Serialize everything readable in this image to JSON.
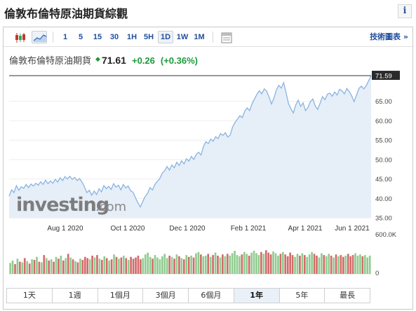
{
  "page": {
    "title": "倫敦布倫特原油期貨綜觀",
    "info_icon": "info-icon"
  },
  "toolbar": {
    "chart_type_icons": [
      "candlestick-icon",
      "area-chart-icon"
    ],
    "intervals": [
      "1",
      "5",
      "15",
      "30",
      "1H",
      "5H",
      "1D",
      "1W",
      "1M"
    ],
    "active_interval": "1D",
    "settings_icon": "table-icon",
    "tech_link": "技術圖表 »"
  },
  "quote": {
    "name": "倫敦布倫特原油期貨",
    "direction_icon": "up-arrow-icon",
    "price": "71.61",
    "change": "+0.26",
    "change_pct": "(+0.36%)",
    "up_color": "#1d9a3a"
  },
  "watermark": {
    "brand": "investing",
    "suffix": ".com"
  },
  "chart_data": {
    "type": "area",
    "x_tick_labels": [
      "Aug 1 2020",
      "Oct 1 2020",
      "Dec 1 2020",
      "Feb 1 2021",
      "Apr 1 2021",
      "Jun 1 2021"
    ],
    "y_tick_labels": [
      "35.00",
      "40.00",
      "45.00",
      "50.00",
      "55.00",
      "60.00",
      "65.00"
    ],
    "ylim": [
      35,
      72.5
    ],
    "last_price_label": "71.59",
    "last_price": 71.59,
    "price_series": [
      40.6,
      42.2,
      41.5,
      43.3,
      42.1,
      43.0,
      42.6,
      43.6,
      42.8,
      43.7,
      43.2,
      43.9,
      43.4,
      44.3,
      43.6,
      44.7,
      43.8,
      44.5,
      43.9,
      44.9,
      44.2,
      45.3,
      44.6,
      45.6,
      45.0,
      45.7,
      44.9,
      45.4,
      44.6,
      45.1,
      44.2,
      43.0,
      41.5,
      42.1,
      40.8,
      41.9,
      41.0,
      42.5,
      41.7,
      43.3,
      42.5,
      43.1,
      42.3,
      43.8,
      42.9,
      43.4,
      42.2,
      43.6,
      42.7,
      43.2,
      42.0,
      41.6,
      40.2,
      38.9,
      37.8,
      39.2,
      40.5,
      41.3,
      42.8,
      42.2,
      43.6,
      44.4,
      45.1,
      46.5,
      47.1,
      48.2,
      47.3,
      48.6,
      47.9,
      49.3,
      48.5,
      49.7,
      48.9,
      50.2,
      49.6,
      50.8,
      50.0,
      51.3,
      51.9,
      51.2,
      53.4,
      54.6,
      54.1,
      55.3,
      54.7,
      55.9,
      55.4,
      56.7,
      56.2,
      56.9,
      55.8,
      56.3,
      58.4,
      59.6,
      60.4,
      61.3,
      60.8,
      62.5,
      63.3,
      62.6,
      64.4,
      65.6,
      66.8,
      67.7,
      66.9,
      68.2,
      67.6,
      66.1,
      64.3,
      65.8,
      67.9,
      69.1,
      68.4,
      69.8,
      67.2,
      64.4,
      63.1,
      62.0,
      64.1,
      65.3,
      63.7,
      64.6,
      62.6,
      63.4,
      64.9,
      65.6,
      63.8,
      62.9,
      64.5,
      66.2,
      65.4,
      66.8,
      67.1,
      66.3,
      67.4,
      66.6,
      68.1,
      67.7,
      66.9,
      68.3,
      67.5,
      66.4,
      64.9,
      66.6,
      68.3,
      68.9,
      68.2,
      69.0,
      70.3,
      71.59
    ],
    "volume": {
      "y_tick_labels": [
        "600.0K",
        "0"
      ],
      "ylim": [
        0,
        600000
      ],
      "values": [
        180,
        220,
        160,
        250,
        200,
        190,
        260,
        210,
        170,
        240,
        230,
        280,
        200,
        190,
        310,
        260,
        220,
        240,
        200,
        280,
        250,
        300,
        220,
        260,
        330,
        270,
        240,
        210,
        190,
        250,
        230,
        280,
        260,
        240,
        300,
        270,
        310,
        250,
        230,
        290,
        260,
        220,
        240,
        320,
        280,
        250,
        270,
        300,
        260,
        230,
        280,
        250,
        270,
        300,
        240,
        260,
        320,
        350,
        280,
        250,
        310,
        270,
        240,
        290,
        330,
        260,
        300,
        280,
        250,
        320,
        290,
        260,
        240,
        310,
        280,
        300,
        270,
        340,
        360,
        320,
        290,
        300,
        330,
        280,
        310,
        350,
        300,
        270,
        320,
        290,
        330,
        300,
        340,
        380,
        310,
        290,
        320,
        360,
        330,
        300,
        350,
        380,
        340,
        310,
        360,
        330,
        390,
        350,
        320,
        370,
        340,
        300,
        330,
        360,
        320,
        290,
        350,
        310,
        280,
        330,
        300,
        340,
        310,
        280,
        320,
        360,
        330,
        300,
        270,
        340,
        310,
        290,
        330,
        300,
        270,
        320,
        290,
        310,
        280,
        300,
        330,
        290,
        310,
        340,
        300,
        320,
        290,
        310,
        270,
        300
      ],
      "up_color": "#8fcc8f",
      "down_color": "#d46a6a"
    },
    "line_color": "#8ab4e0",
    "fill_color": "#e6eef8"
  },
  "periods": [
    "1天",
    "1週",
    "1個月",
    "3個月",
    "6個月",
    "1年",
    "5年",
    "最長"
  ],
  "active_period": "1年"
}
